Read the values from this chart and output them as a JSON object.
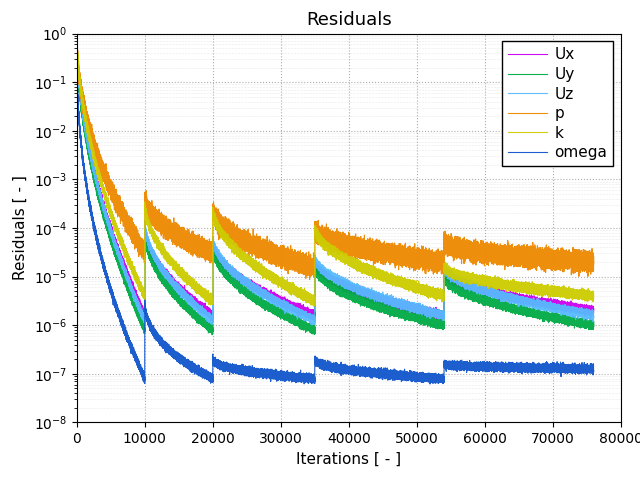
{
  "title": "Residuals",
  "xlabel": "Iterations [ - ]",
  "ylabel": "Residuals [ - ]",
  "xlim": [
    0,
    78000
  ],
  "ylim_log": [
    -8,
    0
  ],
  "series": [
    {
      "label": "Ux",
      "color": "#cc00ee"
    },
    {
      "label": "Uy",
      "color": "#00aa44"
    },
    {
      "label": "Uz",
      "color": "#55bbff"
    },
    {
      "label": "p",
      "color": "#ee8800"
    },
    {
      "label": "k",
      "color": "#cccc00"
    },
    {
      "label": "omega",
      "color": "#1155cc"
    }
  ],
  "restart_iters": [
    10000,
    20000,
    35000,
    54000
  ],
  "end_iter": 76000,
  "background_color": "#ffffff",
  "grid_color": "#999999",
  "title_fontsize": 13,
  "label_fontsize": 11,
  "tick_fontsize": 10,
  "legend_fontsize": 11,
  "figsize": [
    6.4,
    4.8
  ],
  "dpi": 100
}
